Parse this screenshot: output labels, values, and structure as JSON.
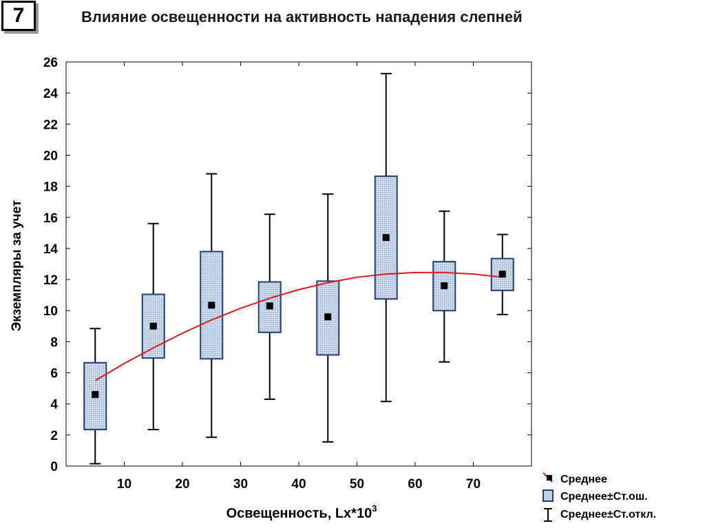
{
  "slide": {
    "number": "7"
  },
  "chart_data": {
    "type": "box",
    "title": "Влияние освещенности на активность нападения слепней",
    "xlabel": "Освещенность,  Lx*10",
    "xlabel_sup": "3",
    "ylabel": "Экземпляры за учет",
    "xlim": [
      0,
      80
    ],
    "ylim": [
      0,
      26
    ],
    "xticks": [
      10,
      20,
      30,
      40,
      50,
      60,
      70
    ],
    "yticks": [
      0,
      2,
      4,
      6,
      8,
      10,
      12,
      14,
      16,
      18,
      20,
      22,
      24,
      26
    ],
    "groups": [
      {
        "x": 5,
        "mean": 4.6,
        "se_low": 2.35,
        "se_high": 6.65,
        "sd_low": 0.15,
        "sd_high": 8.85
      },
      {
        "x": 15,
        "mean": 9.0,
        "se_low": 6.95,
        "se_high": 11.05,
        "sd_low": 2.35,
        "sd_high": 15.6
      },
      {
        "x": 25,
        "mean": 10.35,
        "se_low": 6.9,
        "se_high": 13.8,
        "sd_low": 1.85,
        "sd_high": 18.8
      },
      {
        "x": 35,
        "mean": 10.3,
        "se_low": 8.6,
        "se_high": 11.85,
        "sd_low": 4.3,
        "sd_high": 16.2
      },
      {
        "x": 45,
        "mean": 9.6,
        "se_low": 7.15,
        "se_high": 11.9,
        "sd_low": 1.55,
        "sd_high": 17.5
      },
      {
        "x": 55,
        "mean": 14.7,
        "se_low": 10.75,
        "se_high": 18.65,
        "sd_low": 4.15,
        "sd_high": 25.25
      },
      {
        "x": 65,
        "mean": 11.6,
        "se_low": 10.0,
        "se_high": 13.15,
        "sd_low": 6.7,
        "sd_high": 16.4
      },
      {
        "x": 75,
        "mean": 12.35,
        "se_low": 11.3,
        "se_high": 13.35,
        "sd_low": 9.75,
        "sd_high": 14.9
      }
    ],
    "trend": {
      "type": "polynomial",
      "points": [
        {
          "x": 5,
          "y": 5.5
        },
        {
          "x": 10,
          "y": 6.6
        },
        {
          "x": 15,
          "y": 7.6
        },
        {
          "x": 20,
          "y": 8.55
        },
        {
          "x": 25,
          "y": 9.4
        },
        {
          "x": 30,
          "y": 10.15
        },
        {
          "x": 35,
          "y": 10.8
        },
        {
          "x": 40,
          "y": 11.35
        },
        {
          "x": 45,
          "y": 11.8
        },
        {
          "x": 50,
          "y": 12.15
        },
        {
          "x": 55,
          "y": 12.35
        },
        {
          "x": 60,
          "y": 12.45
        },
        {
          "x": 65,
          "y": 12.45
        },
        {
          "x": 70,
          "y": 12.35
        },
        {
          "x": 75,
          "y": 12.15
        }
      ]
    },
    "legend": {
      "placement": "bottom-right",
      "items": [
        {
          "kind": "mean",
          "label": "Среднее"
        },
        {
          "kind": "se-box",
          "label": "Среднее±Ст.ош."
        },
        {
          "kind": "sd-whisker",
          "label": "Среднее±Ст.откл."
        }
      ]
    },
    "colors": {
      "box_fill": "#a9c1de",
      "box_stroke": "#1f3f7a",
      "trend": "#e01818",
      "axis": "#000000"
    }
  }
}
